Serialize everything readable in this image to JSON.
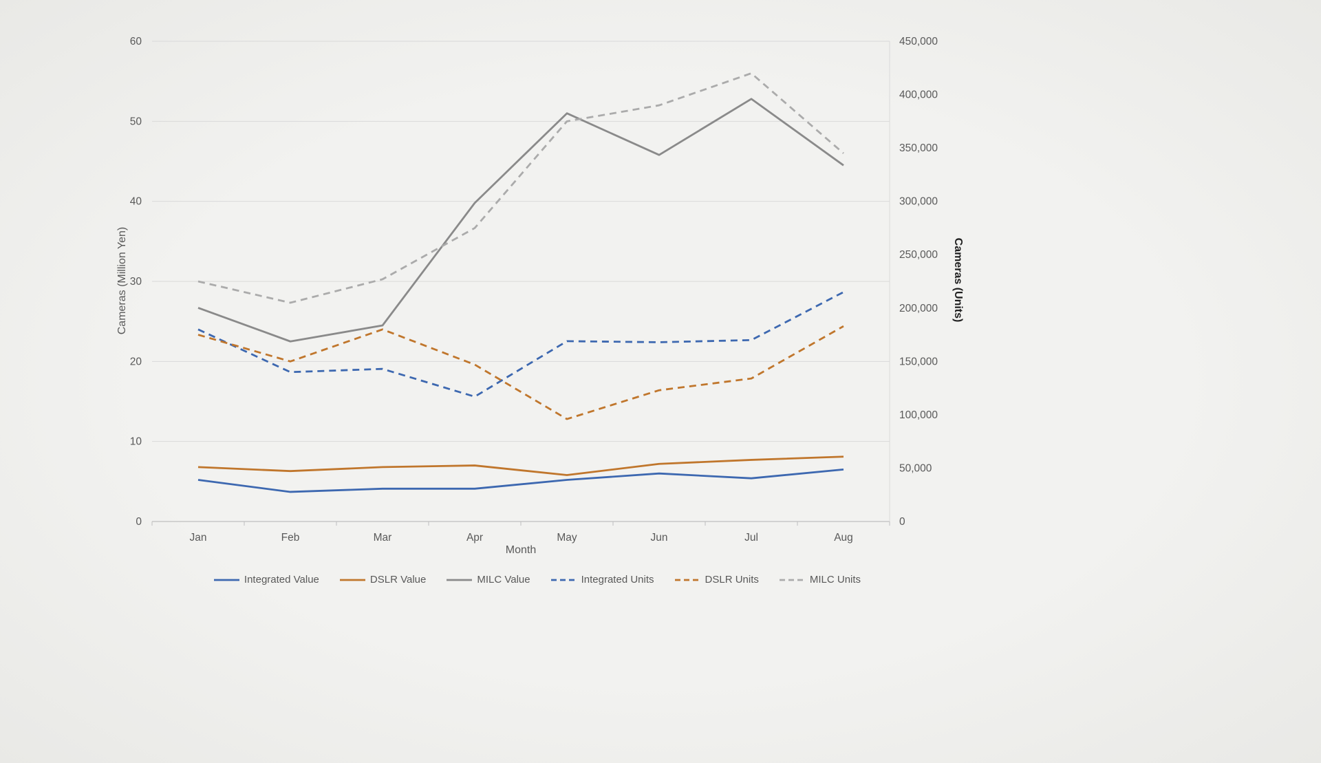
{
  "chart_data": {
    "type": "line",
    "title": "",
    "xlabel": "Month",
    "ylabel_left": "Cameras (Million Yen)",
    "ylabel_right": "Cameras (Units)",
    "categories": [
      "Jan",
      "Feb",
      "Mar",
      "Apr",
      "May",
      "Jun",
      "Jul",
      "Aug"
    ],
    "left_axis": {
      "min": 0,
      "max": 60,
      "ticks": [
        "0",
        "10",
        "20",
        "30",
        "40",
        "50",
        "60"
      ]
    },
    "right_axis": {
      "min": 0,
      "max": 450000,
      "ticks": [
        "0",
        "50,000",
        "100,000",
        "150,000",
        "200,000",
        "250,000",
        "300,000",
        "350,000",
        "400,000",
        "450,000"
      ]
    },
    "grid": true,
    "legend_position": "bottom",
    "series": [
      {
        "name": "Integrated Value",
        "axis": "left",
        "style": "solid",
        "color": "#3D68B0",
        "values": [
          5.2,
          3.7,
          4.1,
          4.1,
          5.2,
          6.0,
          5.4,
          6.5
        ]
      },
      {
        "name": "DSLR Value",
        "axis": "left",
        "style": "solid",
        "color": "#C0762C",
        "values": [
          6.8,
          6.3,
          6.8,
          7.0,
          5.8,
          7.2,
          7.7,
          8.1
        ]
      },
      {
        "name": "MILC Value",
        "axis": "left",
        "style": "solid",
        "color": "#8A8A8A",
        "values": [
          26.7,
          22.5,
          24.5,
          39.8,
          51.0,
          45.8,
          52.8,
          44.5
        ]
      },
      {
        "name": "Integrated Units",
        "axis": "right",
        "style": "dashed",
        "color": "#3D68B0",
        "values": [
          180000,
          140000,
          143000,
          117000,
          169000,
          168000,
          170000,
          215000
        ]
      },
      {
        "name": "DSLR Units",
        "axis": "right",
        "style": "dashed",
        "color": "#C0762C",
        "values": [
          175000,
          150000,
          180000,
          147000,
          96000,
          123000,
          134000,
          183000
        ]
      },
      {
        "name": "MILC Units",
        "axis": "right",
        "style": "dashed",
        "color": "#ABABAB",
        "values": [
          225000,
          205000,
          227000,
          275000,
          375000,
          390000,
          420000,
          345000
        ]
      }
    ]
  },
  "colors": {
    "background": "#F0F0EE",
    "gridline": "#D9D9D9",
    "axis_line": "#BFBFBF",
    "tick_text": "#595959",
    "right_title_text": "#1F1F1F"
  }
}
